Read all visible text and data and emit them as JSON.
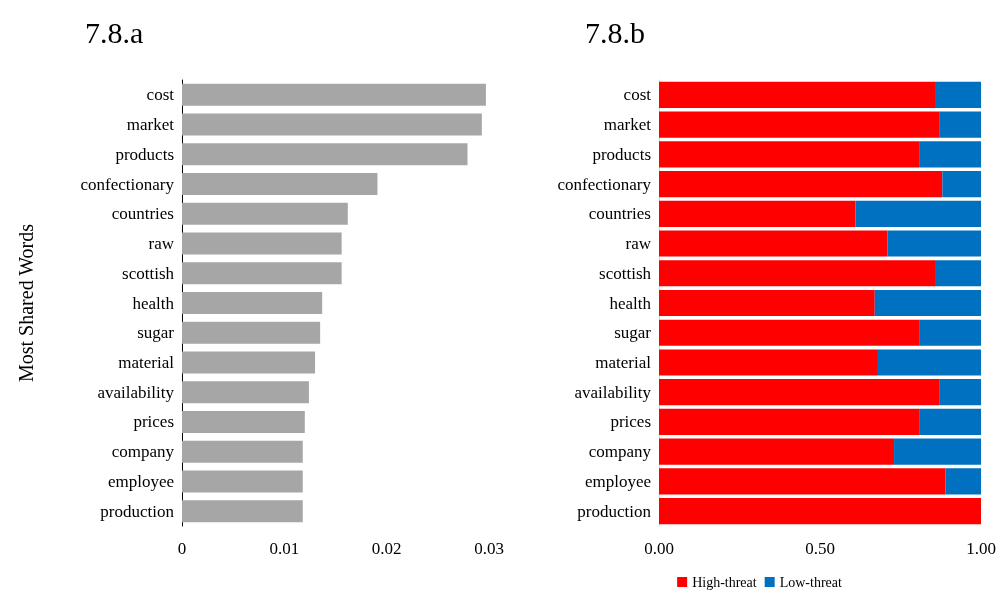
{
  "chart_data": [
    {
      "type": "bar",
      "title": "7.8.a",
      "ylabel": "Most Shared Words",
      "orientation": "horizontal",
      "categories": [
        "cost",
        "market",
        "products",
        "confectionary",
        "countries",
        "raw",
        "scottish",
        "health",
        "sugar",
        "material",
        "availability",
        "prices",
        "company",
        "employee",
        "production"
      ],
      "series": [
        {
          "color": "#a6a6a6",
          "values": [
            0.0297,
            0.0293,
            0.0279,
            0.0191,
            0.0162,
            0.0156,
            0.0156,
            0.0137,
            0.0135,
            0.013,
            0.0124,
            0.012,
            0.0118,
            0.0118,
            0.0118
          ]
        }
      ],
      "xlim": [
        0,
        0.03
      ],
      "xticks": [
        0,
        0.01,
        0.02,
        0.03
      ],
      "grid": false
    },
    {
      "type": "bar",
      "title": "7.8.b",
      "orientation": "horizontal",
      "stacked": true,
      "categories": [
        "cost",
        "market",
        "products",
        "confectionary",
        "countries",
        "raw",
        "scottish",
        "health",
        "sugar",
        "material",
        "availability",
        "prices",
        "company",
        "employee",
        "production"
      ],
      "series": [
        {
          "name": "High-threat",
          "color": "#ff0000",
          "values": [
            0.86,
            0.87,
            0.81,
            0.88,
            0.61,
            0.71,
            0.86,
            0.67,
            0.81,
            0.68,
            0.87,
            0.81,
            0.73,
            0.89,
            1.0
          ]
        },
        {
          "name": "Low-threat",
          "color": "#0070c0",
          "values": [
            0.14,
            0.13,
            0.19,
            0.12,
            0.39,
            0.29,
            0.14,
            0.33,
            0.19,
            0.32,
            0.13,
            0.19,
            0.27,
            0.11,
            0
          ]
        }
      ],
      "xlim": [
        0,
        1
      ],
      "xticks": [
        {
          "value": 0,
          "label": "0.00"
        },
        {
          "value": 0.5,
          "label": "0.50"
        },
        {
          "value": 1,
          "label": "1.00"
        }
      ],
      "grid": false,
      "legend": "bottom"
    }
  ]
}
